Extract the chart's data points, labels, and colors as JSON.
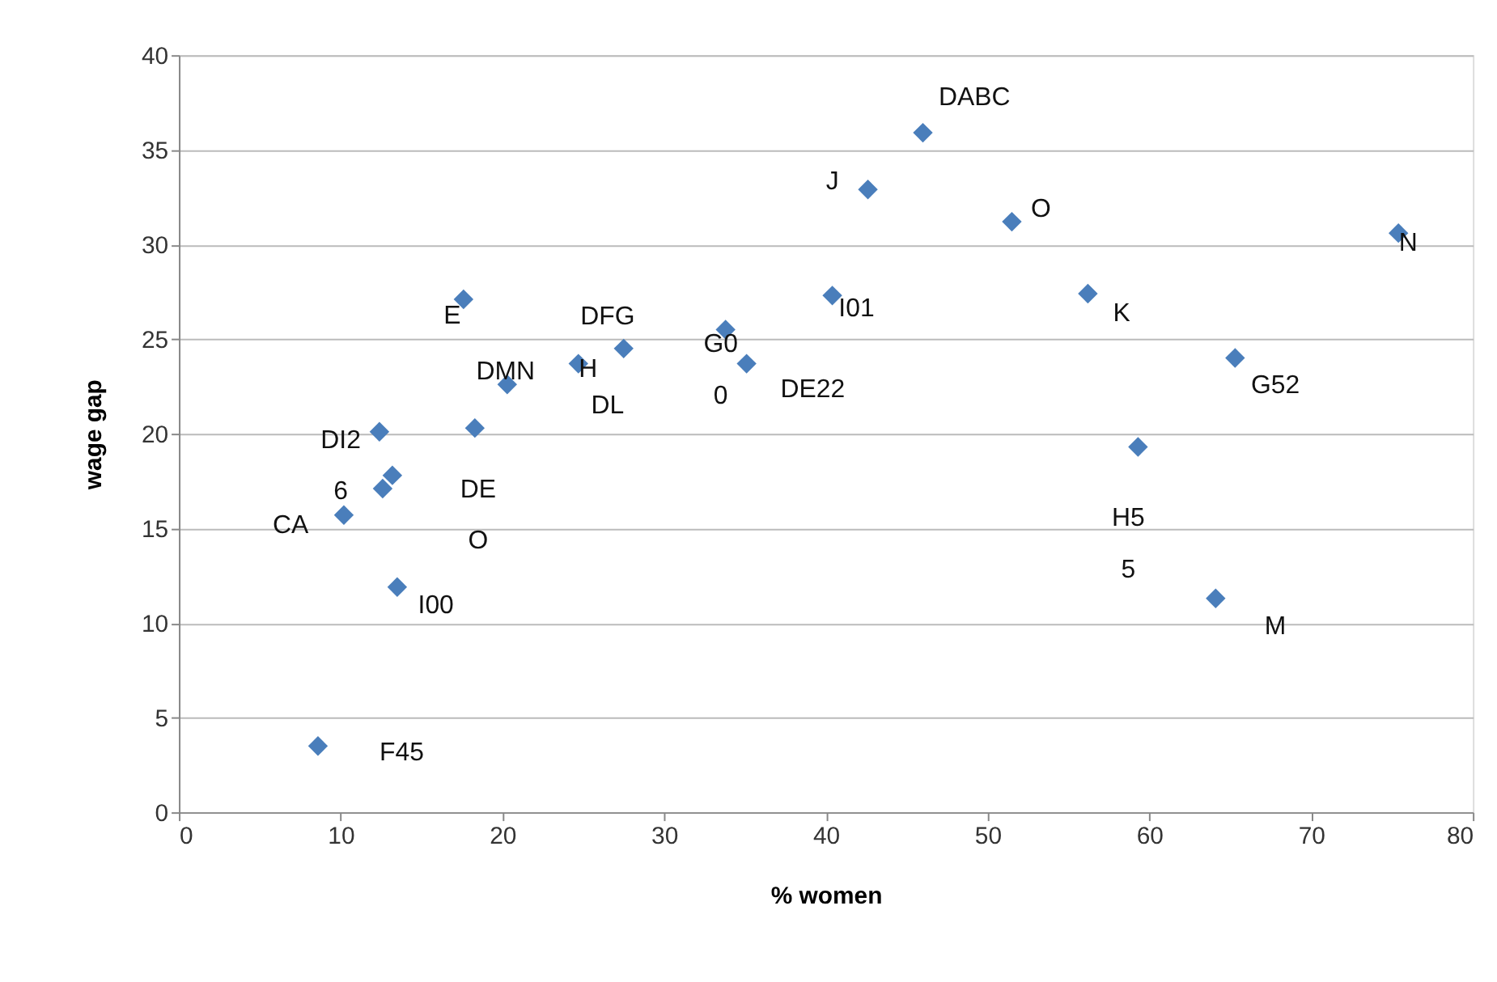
{
  "chart_data": {
    "type": "scatter",
    "xlabel": "% women",
    "ylabel": "wage gap",
    "x": [
      8.6,
      10.2,
      12.4,
      12.6,
      13.2,
      13.5,
      17.6,
      18.3,
      20.3,
      24.7,
      27.5,
      33.8,
      35.1,
      40.4,
      42.6,
      46.0,
      51.5,
      56.2,
      59.3,
      65.3,
      64.1,
      75.4
    ],
    "series": [
      {
        "color": "#4a7ebb",
        "values": [
          3.5,
          15.7,
          20.1,
          17.1,
          17.8,
          11.9,
          27.1,
          20.3,
          22.6,
          23.7,
          24.5,
          25.5,
          23.7,
          27.3,
          32.9,
          35.9,
          31.2,
          27.4,
          19.3,
          24.0,
          11.3,
          30.6
        ]
      }
    ],
    "marker": "diamond",
    "xlim": [
      0,
      80
    ],
    "ylim": [
      0,
      40
    ],
    "xticks": [
      0,
      10,
      20,
      30,
      40,
      50,
      60,
      70,
      80
    ],
    "yticks": [
      0,
      5,
      10,
      15,
      20,
      25,
      30,
      35,
      40
    ],
    "grid": "y",
    "annotations": [
      {
        "text": "F45",
        "x": 8.6,
        "y": 3.5
      },
      {
        "text": "CA",
        "x": 10.2,
        "y": 15.7
      },
      {
        "text": "DI2\n6",
        "x": 12.4,
        "y": 20.1
      },
      {
        "text": "I00",
        "x": 13.5,
        "y": 11.9
      },
      {
        "text": "E",
        "x": 17.6,
        "y": 27.1
      },
      {
        "text": "DE\nO",
        "x": 18.3,
        "y": 20.3
      },
      {
        "text": "DMN",
        "x": 20.3,
        "y": 22.6
      },
      {
        "text": "H",
        "x": 24.7,
        "y": 23.7
      },
      {
        "text": "DL",
        "x": 27.5,
        "y": 24.5
      },
      {
        "text": "DFG",
        "x": 27.5,
        "y": 24.5
      },
      {
        "text": "G0\n0",
        "x": 33.8,
        "y": 25.5
      },
      {
        "text": "DE22",
        "x": 35.1,
        "y": 23.7
      },
      {
        "text": "I01",
        "x": 40.4,
        "y": 27.3
      },
      {
        "text": "J",
        "x": 42.6,
        "y": 32.9
      },
      {
        "text": "DABC",
        "x": 46.0,
        "y": 35.9
      },
      {
        "text": "O",
        "x": 51.5,
        "y": 31.2
      },
      {
        "text": "K",
        "x": 56.2,
        "y": 27.4
      },
      {
        "text": "H5\n5",
        "x": 59.3,
        "y": 19.3
      },
      {
        "text": "G52",
        "x": 65.3,
        "y": 24.0
      },
      {
        "text": "M",
        "x": 64.1,
        "y": 11.3
      },
      {
        "text": "N",
        "x": 75.4,
        "y": 30.6
      }
    ]
  }
}
